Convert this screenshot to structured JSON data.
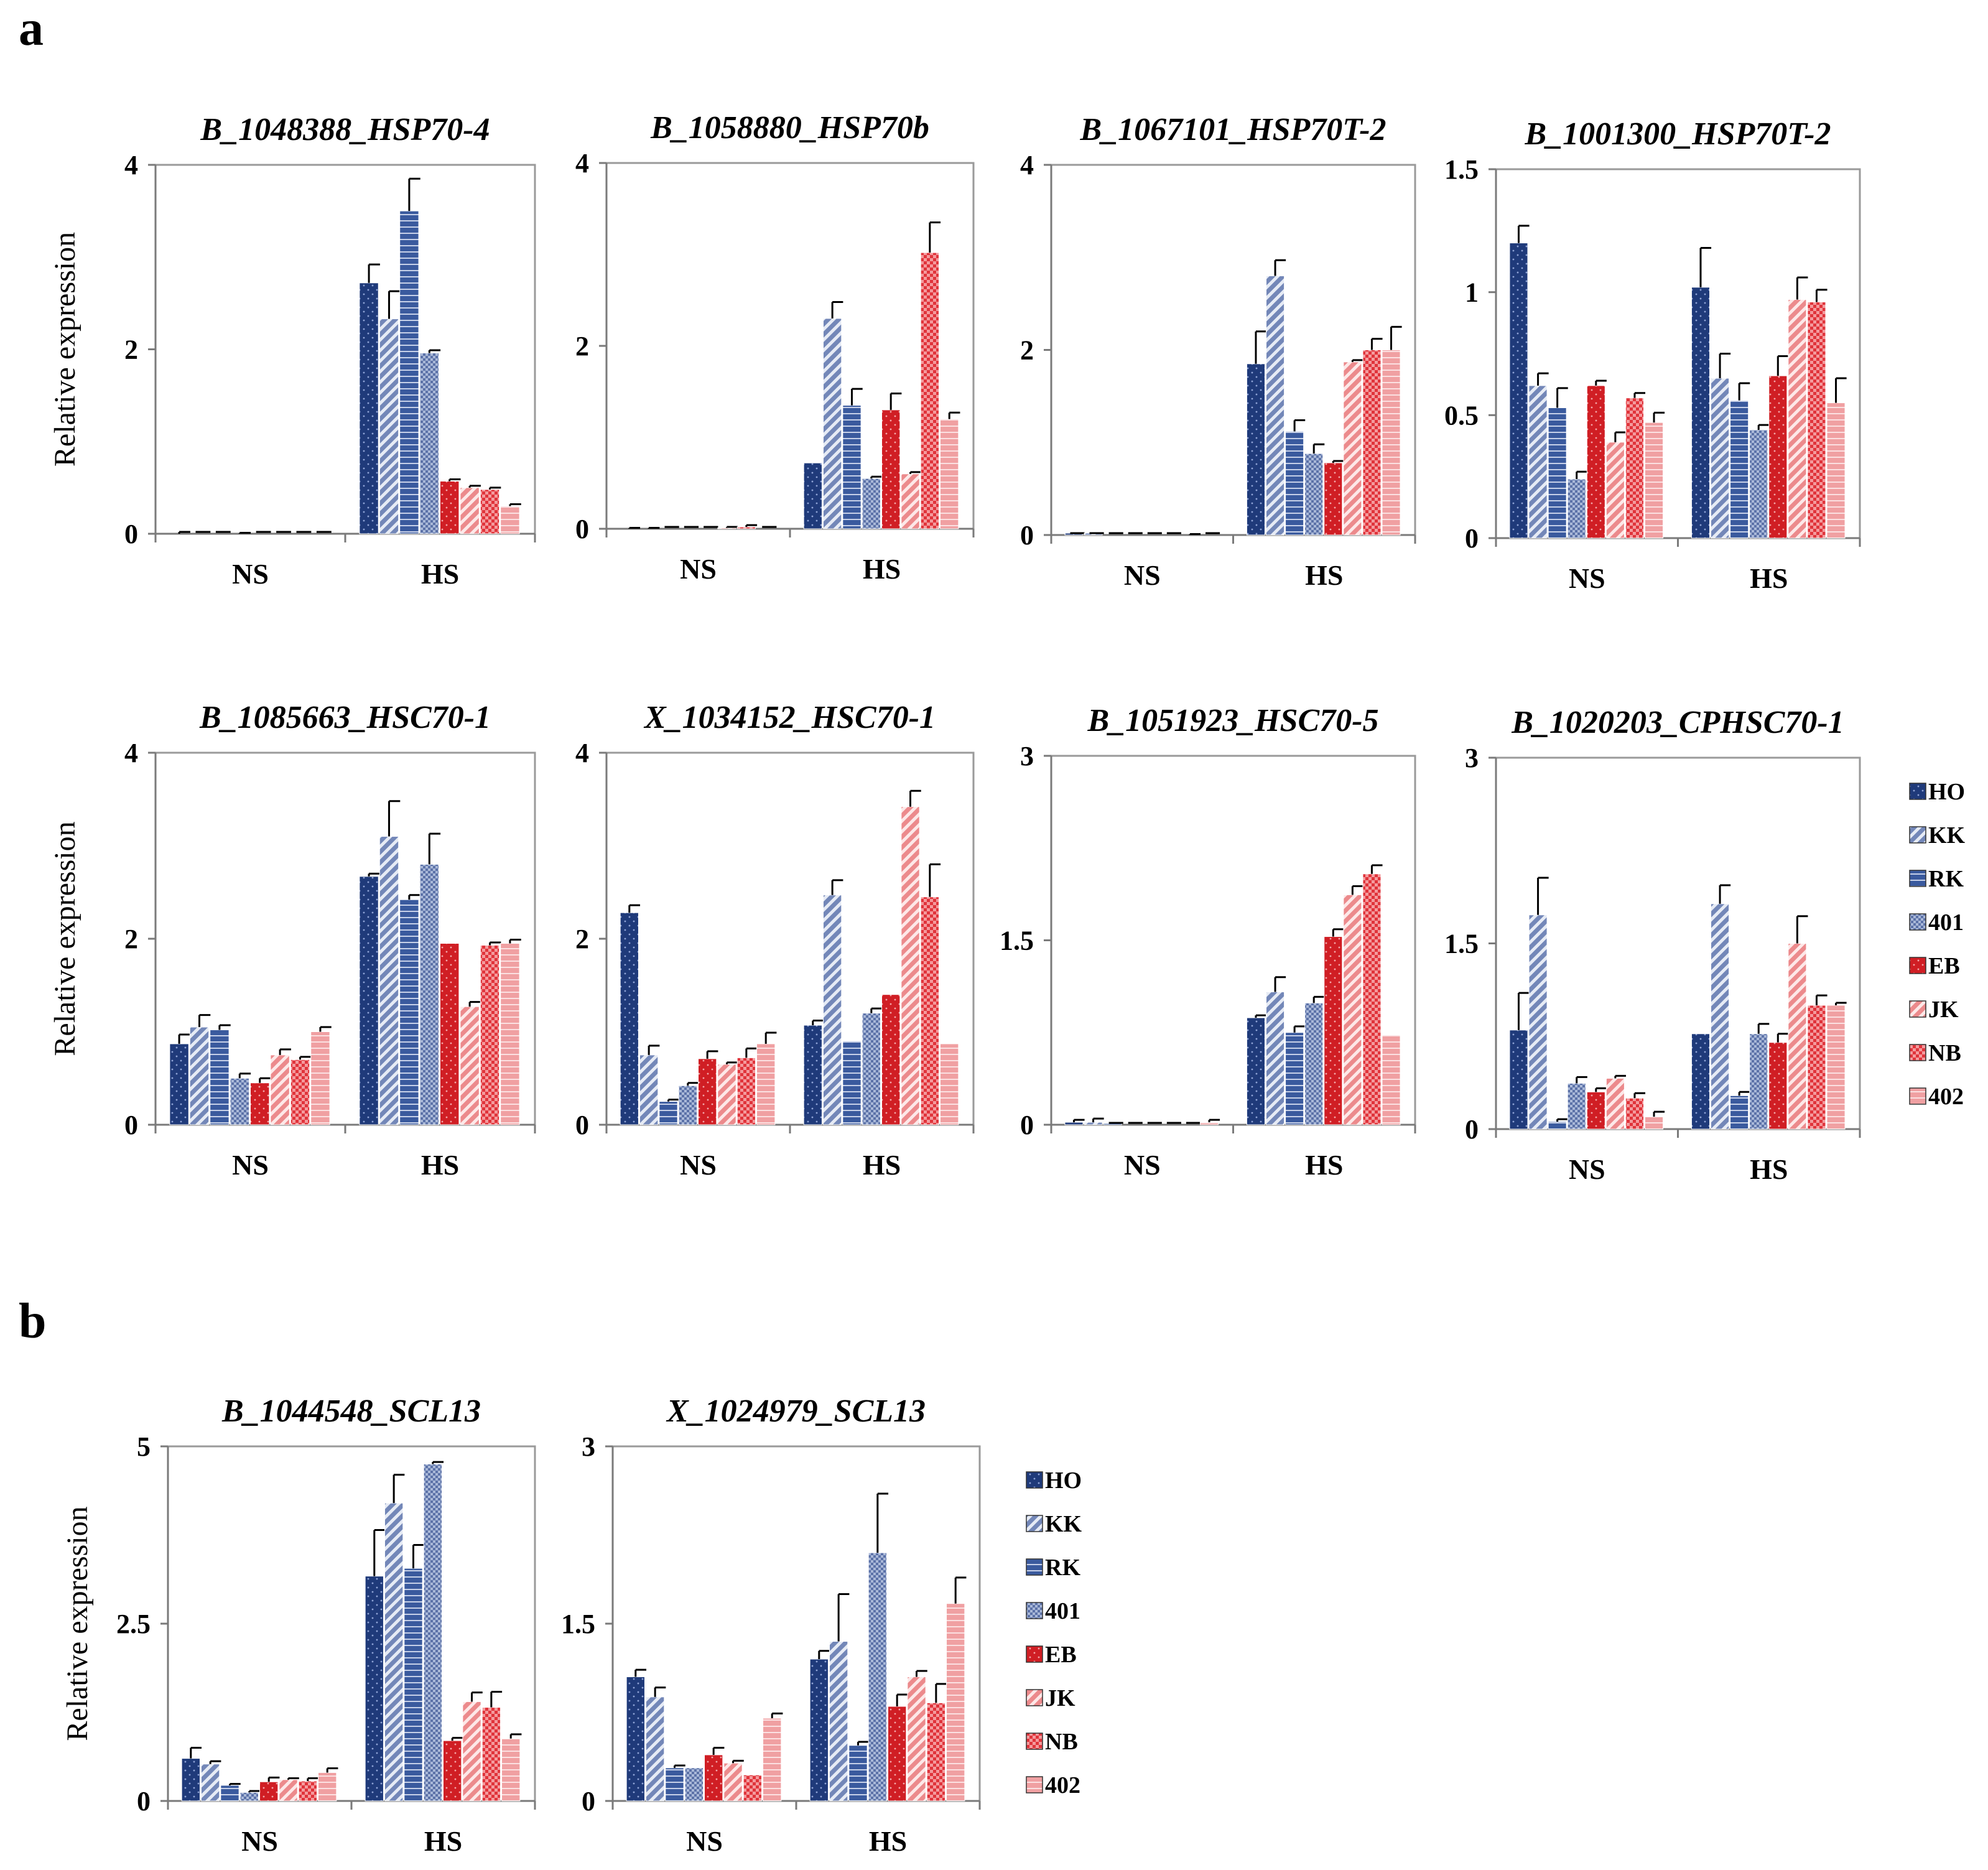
{
  "panel_labels": [
    "a",
    "b"
  ],
  "series_colors": [
    "#1f3a7a",
    "#7387b8",
    "#3a5a9e",
    "#a9b8d8",
    "#d01e24",
    "#ec8a8c",
    "#e0343b",
    "#f0a0a2"
  ],
  "chart_data": [
    {
      "type": "bar",
      "title": "B_1048388_HSP70-4",
      "ylabel": "Relative expression",
      "categories": [
        "NS",
        "HS"
      ],
      "ylim": [
        0,
        4
      ],
      "yticks": [
        "0",
        "2",
        "4"
      ],
      "series": [
        {
          "name": "HO",
          "values": [
            0.0,
            2.72
          ],
          "errors": [
            0.02,
            0.2
          ]
        },
        {
          "name": "KK",
          "values": [
            0.0,
            2.33
          ],
          "errors": [
            0.0,
            0.3
          ]
        },
        {
          "name": "RK",
          "values": [
            0.0,
            3.5
          ],
          "errors": [
            0.0,
            0.35
          ]
        },
        {
          "name": "401",
          "values": [
            0.0,
            1.96
          ],
          "errors": [
            0.01,
            0.03
          ]
        },
        {
          "name": "EB",
          "values": [
            0.0,
            0.57
          ],
          "errors": [
            0.0,
            0.02
          ]
        },
        {
          "name": "JK",
          "values": [
            0.0,
            0.5
          ],
          "errors": [
            0.0,
            0.02
          ]
        },
        {
          "name": "NB",
          "values": [
            0.0,
            0.48
          ],
          "errors": [
            0.0,
            0.02
          ]
        },
        {
          "name": "402",
          "values": [
            0.0,
            0.3
          ],
          "errors": [
            0.0,
            0.02
          ]
        }
      ]
    },
    {
      "type": "bar",
      "title": "B_1058880_HSP70b",
      "ylabel": "",
      "categories": [
        "NS",
        "HS"
      ],
      "ylim": [
        0,
        4
      ],
      "yticks": [
        "0",
        "2",
        "4"
      ],
      "series": [
        {
          "name": "HO",
          "values": [
            0.0,
            0.72
          ],
          "errors": [
            0.01,
            0.0
          ]
        },
        {
          "name": "KK",
          "values": [
            0.0,
            2.3
          ],
          "errors": [
            0.01,
            0.18
          ]
        },
        {
          "name": "RK",
          "values": [
            0.0,
            1.35
          ],
          "errors": [
            0.0,
            0.18
          ]
        },
        {
          "name": "401",
          "values": [
            0.0,
            0.55
          ],
          "errors": [
            0.0,
            0.02
          ]
        },
        {
          "name": "EB",
          "values": [
            0.0,
            1.3
          ],
          "errors": [
            0.0,
            0.18
          ]
        },
        {
          "name": "JK",
          "values": [
            0.01,
            0.6
          ],
          "errors": [
            0.01,
            0.02
          ]
        },
        {
          "name": "NB",
          "values": [
            0.02,
            3.02
          ],
          "errors": [
            0.02,
            0.33
          ]
        },
        {
          "name": "402",
          "values": [
            0.0,
            1.2
          ],
          "errors": [
            0.0,
            0.07
          ]
        }
      ]
    },
    {
      "type": "bar",
      "title": "B_1067101_HSP70T-2",
      "ylabel": "",
      "categories": [
        "NS",
        "HS"
      ],
      "ylim": [
        0,
        4
      ],
      "yticks": [
        "0",
        "2",
        "4"
      ],
      "series": [
        {
          "name": "HO",
          "values": [
            0.02,
            1.85
          ],
          "errors": [
            0.0,
            0.35
          ]
        },
        {
          "name": "KK",
          "values": [
            0.02,
            2.8
          ],
          "errors": [
            0.0,
            0.17
          ]
        },
        {
          "name": "RK",
          "values": [
            0.0,
            1.12
          ],
          "errors": [
            0.0,
            0.12
          ]
        },
        {
          "name": "401",
          "values": [
            0.0,
            0.88
          ],
          "errors": [
            0.0,
            0.1
          ]
        },
        {
          "name": "EB",
          "values": [
            0.0,
            0.78
          ],
          "errors": [
            0.0,
            0.02
          ]
        },
        {
          "name": "JK",
          "values": [
            0.0,
            1.87
          ],
          "errors": [
            0.0,
            0.02
          ]
        },
        {
          "name": "NB",
          "values": [
            0.0,
            2.0
          ],
          "errors": [
            0.01,
            0.12
          ]
        },
        {
          "name": "402",
          "values": [
            0.0,
            2.0
          ],
          "errors": [
            0.0,
            0.25
          ]
        }
      ]
    },
    {
      "type": "bar",
      "title": "B_1001300_HSP70T-2",
      "ylabel": "",
      "categories": [
        "NS",
        "HS"
      ],
      "ylim": [
        0,
        1.5
      ],
      "yticks": [
        "0",
        "0.5",
        "1",
        "1.5"
      ],
      "series": [
        {
          "name": "HO",
          "values": [
            1.2,
            1.02
          ],
          "errors": [
            0.07,
            0.16
          ]
        },
        {
          "name": "KK",
          "values": [
            0.62,
            0.65
          ],
          "errors": [
            0.05,
            0.1
          ]
        },
        {
          "name": "RK",
          "values": [
            0.53,
            0.56
          ],
          "errors": [
            0.08,
            0.07
          ]
        },
        {
          "name": "401",
          "values": [
            0.24,
            0.44
          ],
          "errors": [
            0.03,
            0.02
          ]
        },
        {
          "name": "EB",
          "values": [
            0.62,
            0.66
          ],
          "errors": [
            0.02,
            0.08
          ]
        },
        {
          "name": "JK",
          "values": [
            0.39,
            0.97
          ],
          "errors": [
            0.04,
            0.09
          ]
        },
        {
          "name": "NB",
          "values": [
            0.57,
            0.96
          ],
          "errors": [
            0.02,
            0.05
          ]
        },
        {
          "name": "402",
          "values": [
            0.47,
            0.55
          ],
          "errors": [
            0.04,
            0.1
          ]
        }
      ]
    },
    {
      "type": "bar",
      "title": "B_1085663_HSC70-1",
      "ylabel": "Relative expression",
      "categories": [
        "NS",
        "HS"
      ],
      "ylim": [
        0,
        4
      ],
      "yticks": [
        "0",
        "2",
        "4"
      ],
      "series": [
        {
          "name": "HO",
          "values": [
            0.87,
            2.67
          ],
          "errors": [
            0.1,
            0.03
          ]
        },
        {
          "name": "KK",
          "values": [
            1.05,
            3.1
          ],
          "errors": [
            0.13,
            0.38
          ]
        },
        {
          "name": "RK",
          "values": [
            1.02,
            2.42
          ],
          "errors": [
            0.05,
            0.05
          ]
        },
        {
          "name": "401",
          "values": [
            0.5,
            2.8
          ],
          "errors": [
            0.05,
            0.33
          ]
        },
        {
          "name": "EB",
          "values": [
            0.45,
            1.95
          ],
          "errors": [
            0.05,
            0.0
          ]
        },
        {
          "name": "JK",
          "values": [
            0.75,
            1.27
          ],
          "errors": [
            0.06,
            0.05
          ]
        },
        {
          "name": "NB",
          "values": [
            0.7,
            1.93
          ],
          "errors": [
            0.03,
            0.03
          ]
        },
        {
          "name": "402",
          "values": [
            1.0,
            1.95
          ],
          "errors": [
            0.05,
            0.04
          ]
        }
      ]
    },
    {
      "type": "bar",
      "title": "X_1034152_HSC70-1",
      "ylabel": "",
      "categories": [
        "NS",
        "HS"
      ],
      "ylim": [
        0,
        4
      ],
      "yticks": [
        "0",
        "2",
        "4"
      ],
      "series": [
        {
          "name": "HO",
          "values": [
            2.28,
            1.07
          ],
          "errors": [
            0.08,
            0.05
          ]
        },
        {
          "name": "KK",
          "values": [
            0.75,
            2.47
          ],
          "errors": [
            0.1,
            0.16
          ]
        },
        {
          "name": "RK",
          "values": [
            0.25,
            0.9
          ],
          "errors": [
            0.02,
            0.0
          ]
        },
        {
          "name": "401",
          "values": [
            0.42,
            1.2
          ],
          "errors": [
            0.03,
            0.05
          ]
        },
        {
          "name": "EB",
          "values": [
            0.71,
            1.4
          ],
          "errors": [
            0.08,
            0.0
          ]
        },
        {
          "name": "JK",
          "values": [
            0.65,
            3.42
          ],
          "errors": [
            0.02,
            0.17
          ]
        },
        {
          "name": "NB",
          "values": [
            0.72,
            2.45
          ],
          "errors": [
            0.1,
            0.35
          ]
        },
        {
          "name": "402",
          "values": [
            0.87,
            0.87
          ],
          "errors": [
            0.12,
            0.0
          ]
        }
      ]
    },
    {
      "type": "bar",
      "title": "B_1051923_HSC70-5",
      "ylabel": "",
      "categories": [
        "NS",
        "HS"
      ],
      "ylim": [
        0,
        3
      ],
      "yticks": [
        "0",
        "1.5",
        "3"
      ],
      "series": [
        {
          "name": "HO",
          "values": [
            0.02,
            0.87
          ],
          "errors": [
            0.02,
            0.02
          ]
        },
        {
          "name": "KK",
          "values": [
            0.02,
            1.08
          ],
          "errors": [
            0.03,
            0.12
          ]
        },
        {
          "name": "RK",
          "values": [
            0.01,
            0.75
          ],
          "errors": [
            0.0,
            0.05
          ]
        },
        {
          "name": "401",
          "values": [
            0.0,
            0.99
          ],
          "errors": [
            0.0,
            0.05
          ]
        },
        {
          "name": "EB",
          "values": [
            0.0,
            1.53
          ],
          "errors": [
            0.0,
            0.06
          ]
        },
        {
          "name": "JK",
          "values": [
            0.0,
            1.87
          ],
          "errors": [
            0.0,
            0.07
          ]
        },
        {
          "name": "NB",
          "values": [
            0.0,
            2.04
          ],
          "errors": [
            0.0,
            0.07
          ]
        },
        {
          "name": "402",
          "values": [
            0.02,
            0.73
          ],
          "errors": [
            0.02,
            0.0
          ]
        }
      ]
    },
    {
      "type": "bar",
      "title": "B_1020203_CPHSC70-1",
      "ylabel": "",
      "categories": [
        "NS",
        "HS"
      ],
      "ylim": [
        0,
        3
      ],
      "yticks": [
        "0",
        "1.5",
        "3"
      ],
      "series": [
        {
          "name": "HO",
          "values": [
            0.8,
            0.77
          ],
          "errors": [
            0.3,
            0.0
          ]
        },
        {
          "name": "KK",
          "values": [
            1.73,
            1.82
          ],
          "errors": [
            0.3,
            0.15
          ]
        },
        {
          "name": "RK",
          "values": [
            0.06,
            0.27
          ],
          "errors": [
            0.02,
            0.03
          ]
        },
        {
          "name": "401",
          "values": [
            0.37,
            0.77
          ],
          "errors": [
            0.05,
            0.08
          ]
        },
        {
          "name": "EB",
          "values": [
            0.3,
            0.7
          ],
          "errors": [
            0.03,
            0.07
          ]
        },
        {
          "name": "JK",
          "values": [
            0.41,
            1.5
          ],
          "errors": [
            0.02,
            0.22
          ]
        },
        {
          "name": "NB",
          "values": [
            0.25,
            1.0
          ],
          "errors": [
            0.04,
            0.08
          ]
        },
        {
          "name": "402",
          "values": [
            0.1,
            1.0
          ],
          "errors": [
            0.04,
            0.02
          ]
        }
      ]
    },
    {
      "type": "bar",
      "title": "B_1044548_SCL13",
      "ylabel": "Relative expression",
      "categories": [
        "NS",
        "HS"
      ],
      "ylim": [
        0,
        5
      ],
      "yticks": [
        "0",
        "2.5",
        "5"
      ],
      "series": [
        {
          "name": "HO",
          "values": [
            0.6,
            3.17
          ],
          "errors": [
            0.15,
            0.65
          ]
        },
        {
          "name": "KK",
          "values": [
            0.52,
            4.2
          ],
          "errors": [
            0.04,
            0.4
          ]
        },
        {
          "name": "RK",
          "values": [
            0.22,
            3.28
          ],
          "errors": [
            0.02,
            0.33
          ]
        },
        {
          "name": "401",
          "values": [
            0.12,
            4.75
          ],
          "errors": [
            0.02,
            0.03
          ]
        },
        {
          "name": "EB",
          "values": [
            0.27,
            0.85
          ],
          "errors": [
            0.06,
            0.04
          ]
        },
        {
          "name": "JK",
          "values": [
            0.3,
            1.4
          ],
          "errors": [
            0.02,
            0.13
          ]
        },
        {
          "name": "NB",
          "values": [
            0.28,
            1.32
          ],
          "errors": [
            0.04,
            0.22
          ]
        },
        {
          "name": "402",
          "values": [
            0.4,
            0.88
          ],
          "errors": [
            0.06,
            0.06
          ]
        }
      ]
    },
    {
      "type": "bar",
      "title": "X_1024979_SCL13",
      "ylabel": "",
      "categories": [
        "NS",
        "HS"
      ],
      "ylim": [
        0,
        3
      ],
      "yticks": [
        "0",
        "1.5",
        "3"
      ],
      "series": [
        {
          "name": "HO",
          "values": [
            1.05,
            1.2
          ],
          "errors": [
            0.06,
            0.07
          ]
        },
        {
          "name": "KK",
          "values": [
            0.88,
            1.35
          ],
          "errors": [
            0.08,
            0.4
          ]
        },
        {
          "name": "RK",
          "values": [
            0.28,
            0.47
          ],
          "errors": [
            0.02,
            0.03
          ]
        },
        {
          "name": "401",
          "values": [
            0.28,
            2.1
          ],
          "errors": [
            0.0,
            0.5
          ]
        },
        {
          "name": "EB",
          "values": [
            0.39,
            0.8
          ],
          "errors": [
            0.06,
            0.1
          ]
        },
        {
          "name": "JK",
          "values": [
            0.32,
            1.05
          ],
          "errors": [
            0.02,
            0.05
          ]
        },
        {
          "name": "NB",
          "values": [
            0.22,
            0.83
          ],
          "errors": [
            0.0,
            0.16
          ]
        },
        {
          "name": "402",
          "values": [
            0.7,
            1.67
          ],
          "errors": [
            0.04,
            0.22
          ]
        }
      ]
    }
  ],
  "legends": [
    {
      "entries": [
        "HO",
        "KK",
        "RK",
        "401",
        "EB",
        "JK",
        "NB",
        "402"
      ]
    },
    {
      "entries": [
        "HO",
        "KK",
        "RK",
        "401",
        "EB",
        "JK",
        "NB",
        "402"
      ]
    }
  ]
}
